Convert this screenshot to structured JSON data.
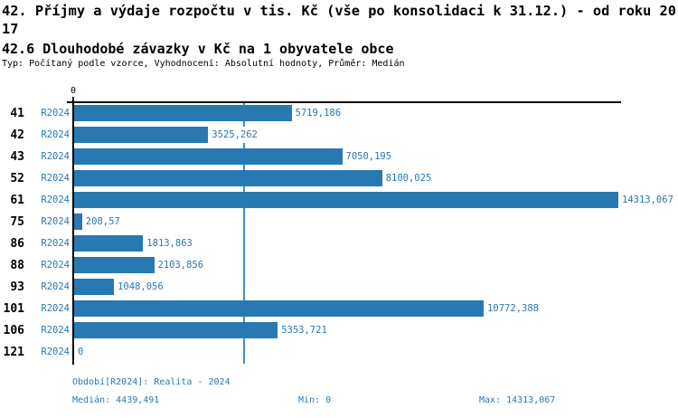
{
  "colors": {
    "accent": "#2878B2",
    "bar": "#2878B2",
    "median_line": "#4090C6",
    "axis": "#000000",
    "background": "#FFFFFF"
  },
  "header": {
    "title": "42. Příjmy a výdaje rozpočtu v tis. Kč (vše po konsolidaci k 31.12.) - od roku 2017",
    "subtitle": "42.6 Dlouhodobé závazky v Kč na 1 obyvatele obce",
    "meta": "Typ: Počítaný podle vzorce, Vyhodnocení: Absolutní hodnoty, Průměr: Medián"
  },
  "chart_data": {
    "type": "bar",
    "orientation": "horizontal",
    "title": "42. Příjmy a výdaje rozpočtu v tis. Kč (vše po konsolidaci k 31.12.) - od roku 2017",
    "subtitle": "42.6 Dlouhodobé závazky v Kč na 1 obyvatele obce",
    "series_label": "R2024",
    "categories": [
      "41",
      "42",
      "43",
      "52",
      "61",
      "75",
      "86",
      "88",
      "93",
      "101",
      "106",
      "121"
    ],
    "values": [
      5719.186,
      3525.262,
      7050.195,
      8100.025,
      14313.067,
      208.57,
      1813.863,
      2103.856,
      1048.056,
      10772.388,
      5353.721,
      0
    ],
    "value_labels": [
      "5719,186",
      "3525,262",
      "7050,195",
      "8100,025",
      "14313,067",
      "208,57",
      "1813,863",
      "2103,856",
      "1048,056",
      "10772,388",
      "5353,721",
      "0"
    ],
    "xlim": [
      0,
      14313.067
    ],
    "axis_zero_label": "0",
    "median": 4439.491,
    "min": 0,
    "max": 14313.067,
    "grid": false,
    "legend_position": "none"
  },
  "footer": {
    "period": "Období[R2024]: Realita - 2024",
    "median": "Medián: 4439,491",
    "min": "Min: 0",
    "max": "Max: 14313,067"
  }
}
